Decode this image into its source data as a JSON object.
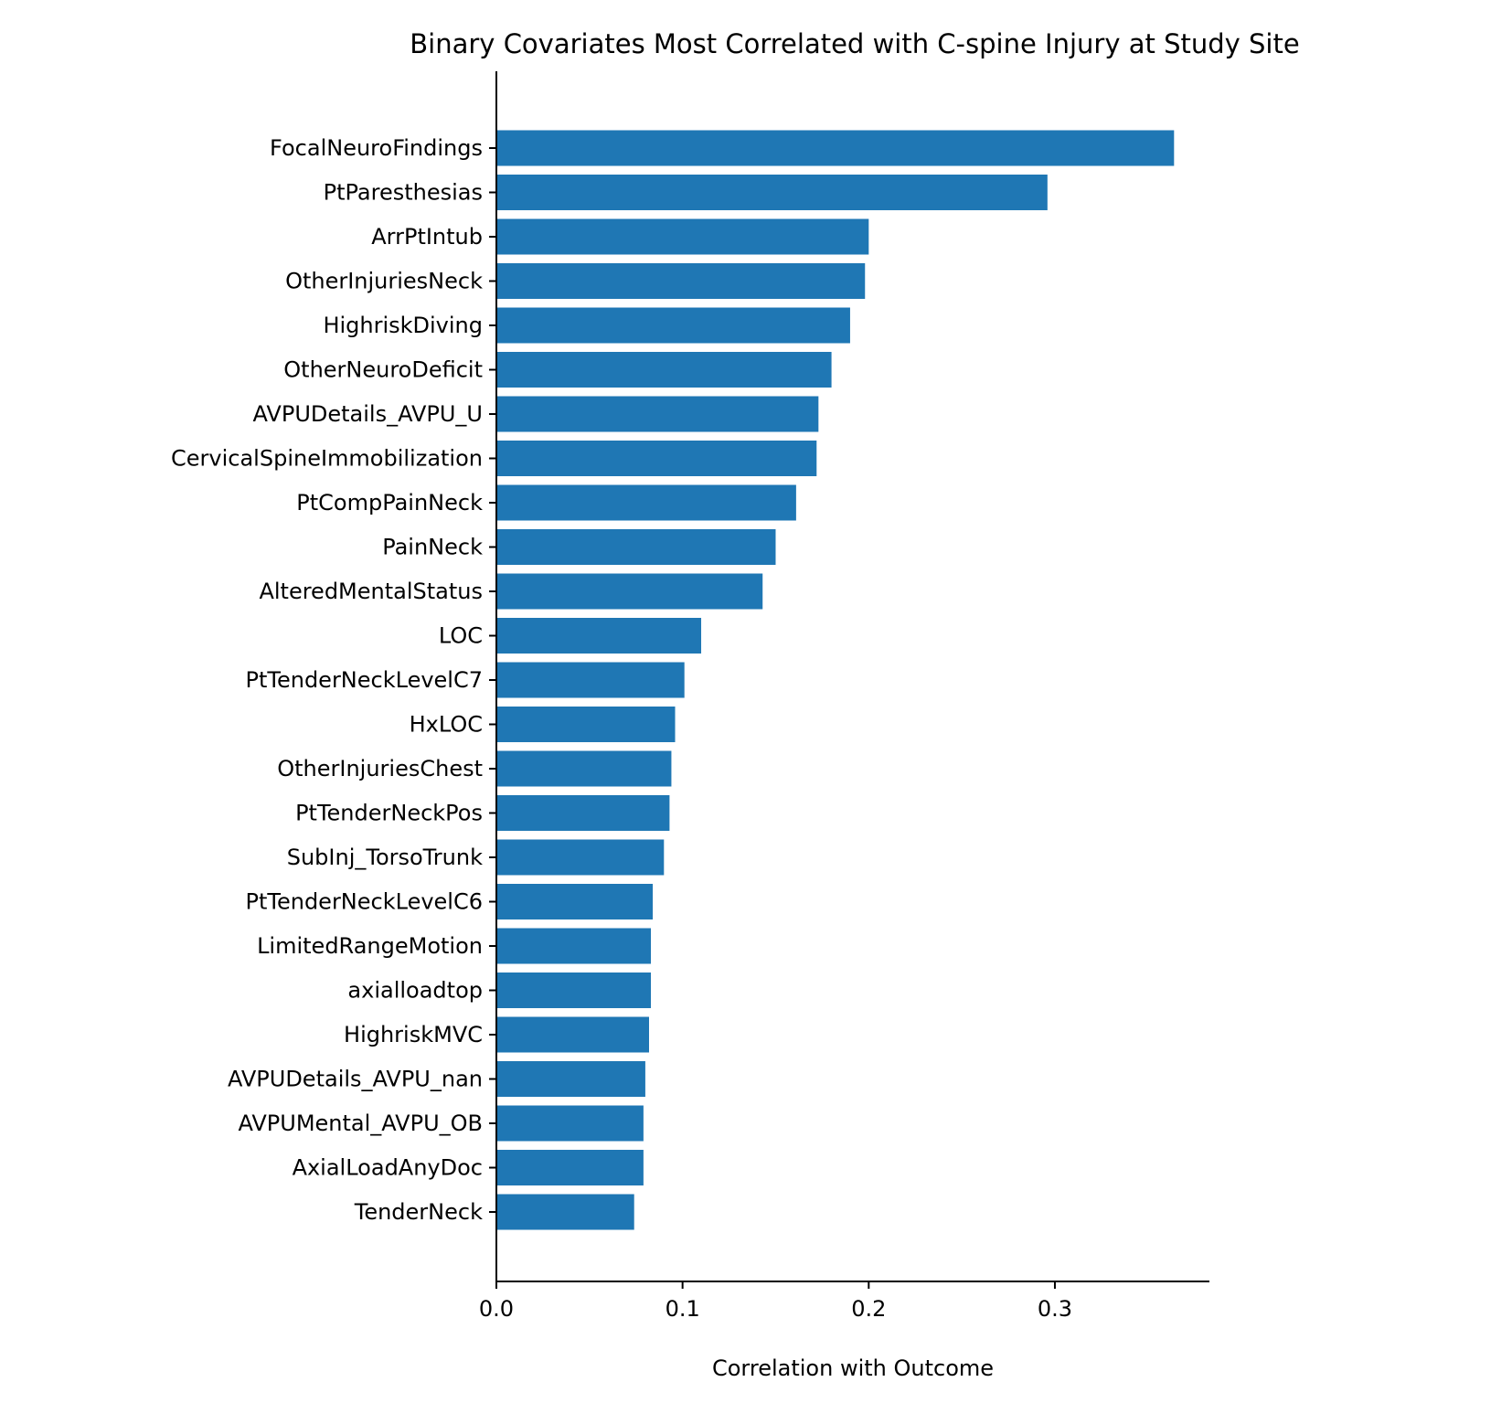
{
  "chart_data": {
    "type": "bar",
    "orientation": "horizontal",
    "title": "Binary Covariates Most Correlated with C-spine Injury at Study Site",
    "xlabel": "Correlation with Outcome",
    "ylabel": "",
    "categories": [
      "FocalNeuroFindings",
      "PtParesthesias",
      "ArrPtIntub",
      "OtherInjuriesNeck",
      "HighriskDiving",
      "OtherNeuroDeficit",
      "AVPUDetails_AVPU_U",
      "CervicalSpineImmobilization",
      "PtCompPainNeck",
      "PainNeck",
      "AlteredMentalStatus",
      "LOC",
      "PtTenderNeckLevelC7",
      "HxLOC",
      "OtherInjuriesChest",
      "PtTenderNeckPos",
      "SubInj_TorsoTrunk",
      "PtTenderNeckLevelC6",
      "LimitedRangeMotion",
      "axialloadtop",
      "HighriskMVC",
      "AVPUDetails_AVPU_nan",
      "AVPUMental_AVPU_OB",
      "AxialLoadAnyDoc",
      "TenderNeck"
    ],
    "values": [
      0.364,
      0.296,
      0.2,
      0.198,
      0.19,
      0.18,
      0.173,
      0.172,
      0.161,
      0.15,
      0.143,
      0.11,
      0.101,
      0.096,
      0.094,
      0.093,
      0.09,
      0.084,
      0.083,
      0.083,
      0.082,
      0.08,
      0.079,
      0.079,
      0.074
    ],
    "xlim": [
      0,
      0.383
    ],
    "xticks": [
      0.0,
      0.1,
      0.2,
      0.3
    ],
    "xtick_labels": [
      "0.0",
      "0.1",
      "0.2",
      "0.3"
    ],
    "grid": false,
    "legend": "none",
    "bar_color": "#1f77b4"
  }
}
